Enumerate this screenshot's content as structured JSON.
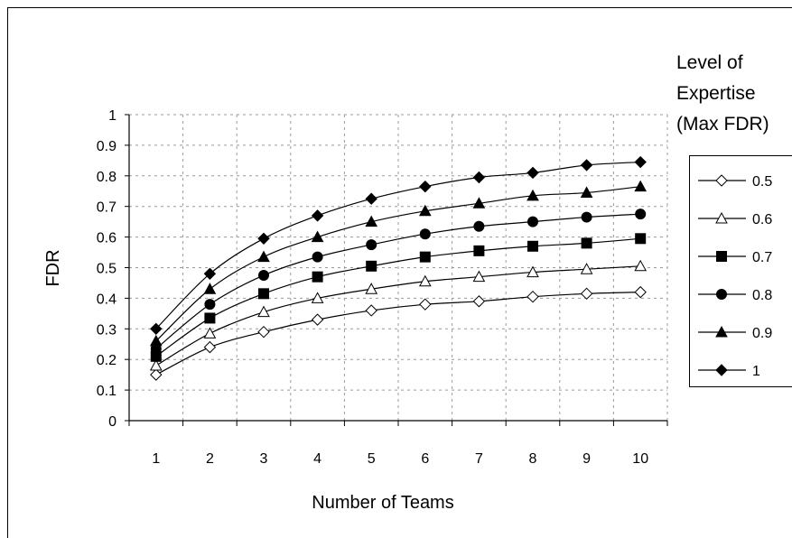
{
  "chart_data": {
    "type": "line",
    "title": "",
    "xlabel": "Number of Teams",
    "ylabel": "FDR",
    "x": [
      1,
      2,
      3,
      4,
      5,
      6,
      7,
      8,
      9,
      10
    ],
    "ylim": [
      0,
      1
    ],
    "y_ticks": [
      "0",
      "0.1",
      "0.2",
      "0.3",
      "0.4",
      "0.5",
      "0.6",
      "0.7",
      "0.8",
      "0.9",
      "1"
    ],
    "x_ticks": [
      "1",
      "2",
      "3",
      "4",
      "5",
      "6",
      "7",
      "8",
      "9",
      "10"
    ],
    "grid": true,
    "legend_title": [
      "Level of",
      "Expertise",
      "(Max FDR)"
    ],
    "legend_position": "right",
    "series": [
      {
        "name": "0.5",
        "marker": "open-diamond",
        "values": [
          0.15,
          0.24,
          0.29,
          0.33,
          0.36,
          0.38,
          0.39,
          0.405,
          0.415,
          0.42
        ]
      },
      {
        "name": "0.6",
        "marker": "open-triangle",
        "values": [
          0.18,
          0.285,
          0.355,
          0.4,
          0.43,
          0.455,
          0.47,
          0.485,
          0.495,
          0.505
        ]
      },
      {
        "name": "0.7",
        "marker": "filled-square",
        "values": [
          0.21,
          0.335,
          0.415,
          0.47,
          0.505,
          0.535,
          0.555,
          0.57,
          0.58,
          0.595
        ]
      },
      {
        "name": "0.8",
        "marker": "filled-circle",
        "values": [
          0.235,
          0.38,
          0.475,
          0.535,
          0.575,
          0.61,
          0.635,
          0.65,
          0.665,
          0.675
        ]
      },
      {
        "name": "0.9",
        "marker": "filled-triangle",
        "values": [
          0.26,
          0.43,
          0.535,
          0.6,
          0.65,
          0.685,
          0.71,
          0.735,
          0.745,
          0.765
        ]
      },
      {
        "name": "1",
        "marker": "filled-diamond",
        "values": [
          0.3,
          0.48,
          0.595,
          0.67,
          0.725,
          0.765,
          0.795,
          0.81,
          0.835,
          0.845
        ]
      }
    ]
  }
}
